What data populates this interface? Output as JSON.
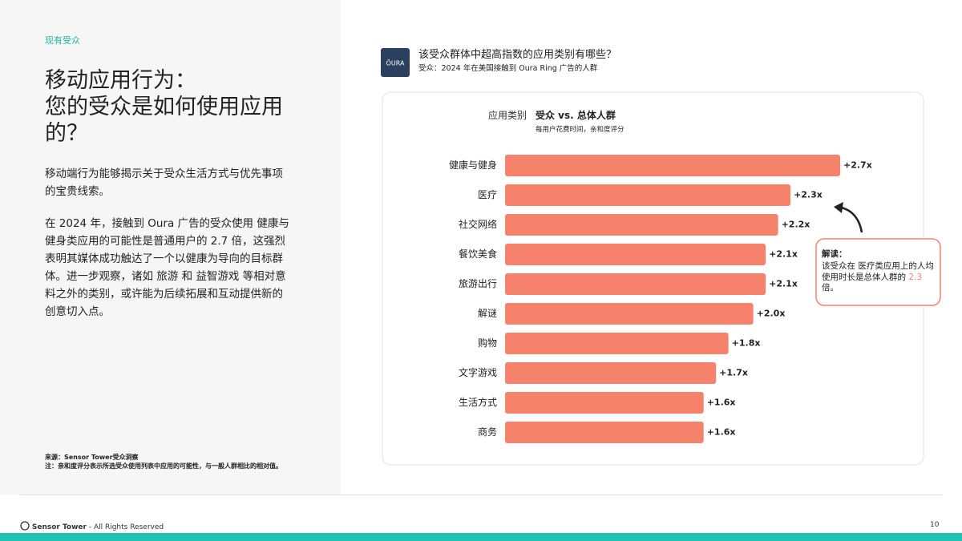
{
  "section": "现有受众",
  "title_lines": [
    "移动应用行为：",
    "您的受众是如何使用应用的？"
  ],
  "paragraphs": [
    "移动端行为能够揭示关于受众生活方式与优先事项的宝贵线索。",
    "在 2024 年，接触到 Oura 广告的受众使用 健康与健身类应用的可能性是普通用户的 2.7 倍，这强烈表明其媒体成功触达了一个以健康为导向的目标群体。进一步观察，诸如 旅游 和 益智游戏 等相对意料之外的类别，或许能为后续拓展和互动提供新的创意切入点。"
  ],
  "notes": [
    "来源：Sensor Tower受众洞察",
    "注：亲和度评分表示所选受众使用列表中应用的可能性，与一般人群相比的相对值。"
  ],
  "logo": "ŌURA",
  "footer": {
    "brand": "Sensor Tower",
    "rights": " - All Rights Reserved",
    "page": "10"
  },
  "chart_data": {
    "type": "bar",
    "orientation": "horizontal",
    "title": "该受众群体中超高指数的应用类别有哪些？",
    "subtitle": "受众：2024 年在美国接触到 Oura Ring 广告的人群",
    "category_header": "应用类别",
    "value_header": "受众 vs. 总体人群",
    "value_subheader": "每用户花费时间，亲和度评分",
    "categories": [
      "健康与健身",
      "医疗",
      "社交网络",
      "餐饮美食",
      "旅游出行",
      "解谜",
      "购物",
      "文字游戏",
      "生活方式",
      "商务"
    ],
    "values": [
      2.7,
      2.3,
      2.2,
      2.1,
      2.1,
      2.0,
      1.8,
      1.7,
      1.6,
      1.6
    ],
    "value_labels": [
      "+2.7x",
      "+2.3x",
      "+2.2x",
      "+2.1x",
      "+2.1x",
      "+2.0x",
      "+1.8x",
      "+1.7x",
      "+1.6x",
      "+1.6x"
    ],
    "color": "#f7826c",
    "annotation": {
      "title": "解读：",
      "parts": [
        "该受众在 医疗类应用上的人均使用时长是总体人群的 ",
        "2.3",
        " 倍。"
      ]
    }
  }
}
